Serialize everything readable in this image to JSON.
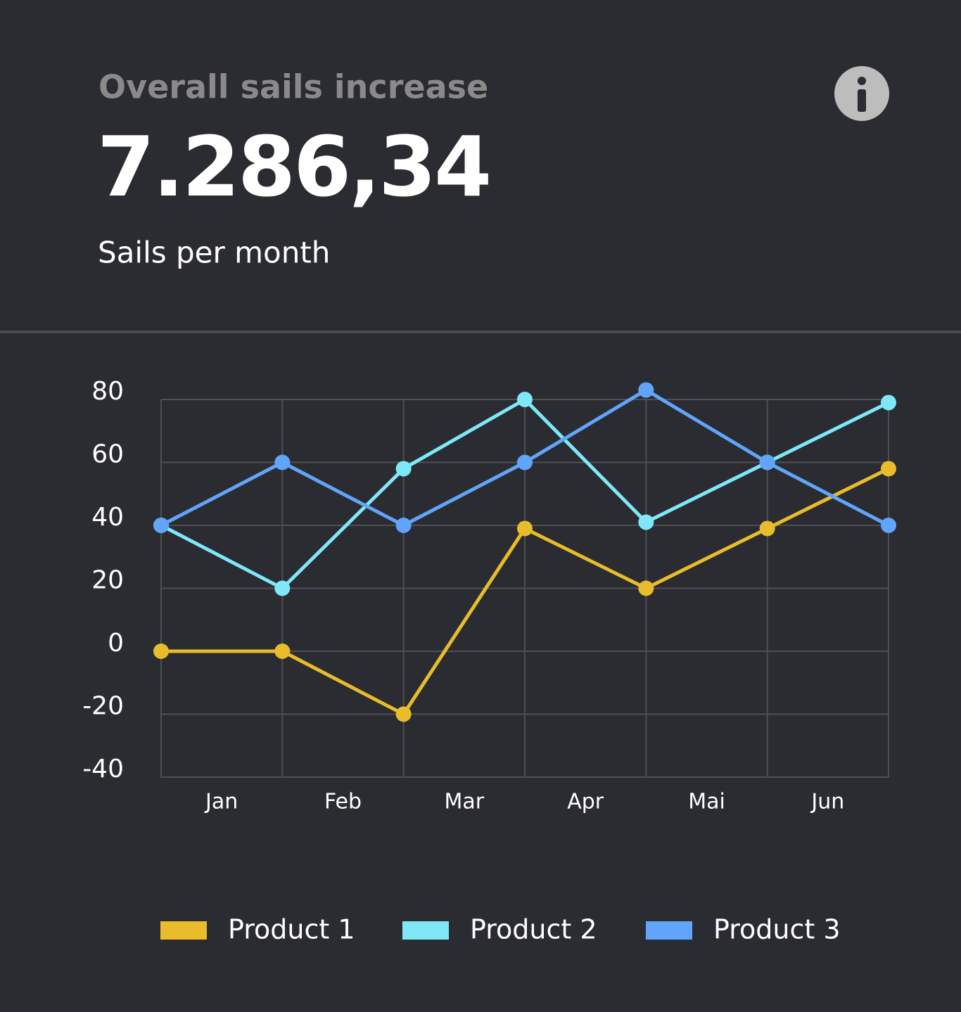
{
  "card": {
    "title": "Overall sails increase",
    "value": "7.286,34",
    "subtitle": "Sails per month"
  },
  "chart_data": {
    "type": "line",
    "categories": [
      "Jan",
      "Feb",
      "Mar",
      "Apr",
      "Mai",
      "Jun",
      null
    ],
    "series": [
      {
        "name": "Product 1",
        "color": "#e8bc2a",
        "values": [
          0,
          0,
          -20,
          39,
          20,
          39,
          58
        ]
      },
      {
        "name": "Product 2",
        "color": "#7ee8f8",
        "values": [
          40,
          20,
          58,
          80,
          41,
          60,
          79
        ]
      },
      {
        "name": "Product 3",
        "color": "#60a5fa",
        "values": [
          40,
          60,
          40,
          60,
          83,
          60,
          40
        ]
      }
    ],
    "ylim": [
      -40,
      80
    ],
    "yticks": [
      -40,
      -20,
      0,
      20,
      40,
      60,
      80
    ],
    "grid": true,
    "legend": "bottom"
  }
}
